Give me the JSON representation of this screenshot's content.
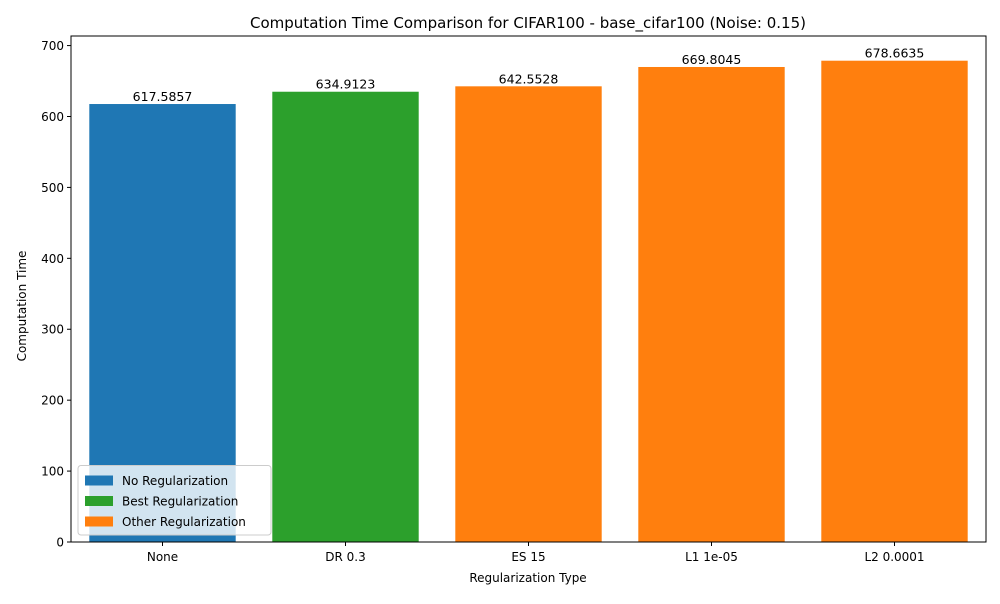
{
  "chart_data": {
    "type": "bar",
    "title": "Computation Time Comparison for CIFAR100 - base_cifar100 (Noise: 0.15)",
    "xlabel": "Regularization Type",
    "ylabel": "Computation Time",
    "categories": [
      "None",
      "DR 0.3",
      "ES 15",
      "L1 1e-05",
      "L2 0.0001"
    ],
    "values": [
      617.5857,
      634.9123,
      642.5528,
      669.8045,
      678.6635
    ],
    "value_labels": [
      "617.5857",
      "634.9123",
      "642.5528",
      "669.8045",
      "678.6635"
    ],
    "bar_groups": [
      "No Regularization",
      "Best Regularization",
      "Other Regularization",
      "Other Regularization",
      "Other Regularization"
    ],
    "ylim": [
      0,
      713.5
    ],
    "yticks": [
      0,
      100,
      200,
      300,
      400,
      500,
      600,
      700
    ],
    "ytick_labels": [
      "0",
      "100",
      "200",
      "300",
      "400",
      "500",
      "600",
      "700"
    ],
    "grid": false,
    "legend": {
      "position": "lower-left",
      "entries": [
        {
          "label": "No Regularization",
          "color": "#1f77b4"
        },
        {
          "label": "Best Regularization",
          "color": "#2ca02c"
        },
        {
          "label": "Other Regularization",
          "color": "#ff7f0e"
        }
      ]
    }
  }
}
